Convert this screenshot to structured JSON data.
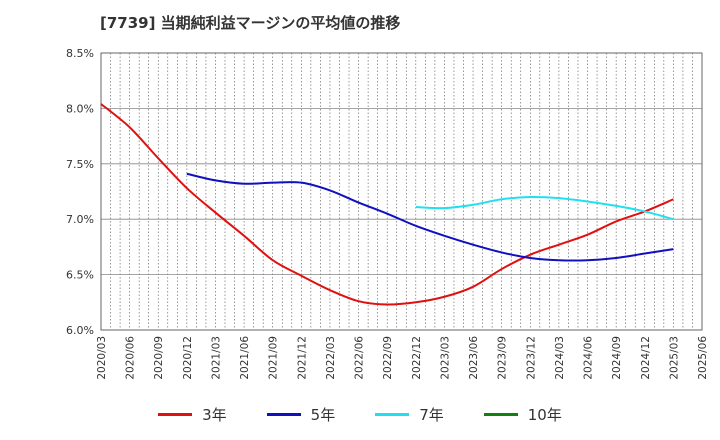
{
  "chart_data": {
    "type": "line",
    "title": "[7739]  当期純利益マージンの平均値の推移",
    "xlabel": "",
    "ylabel": "",
    "x_ticks": [
      "2020/03",
      "2020/06",
      "2020/09",
      "2020/12",
      "2021/03",
      "2021/06",
      "2021/09",
      "2021/12",
      "2022/03",
      "2022/06",
      "2022/09",
      "2022/12",
      "2023/03",
      "2023/06",
      "2023/09",
      "2023/12",
      "2024/03",
      "2024/06",
      "2024/09",
      "2024/12",
      "2025/03",
      "2025/06"
    ],
    "y_ticks": [
      "6.0%",
      "6.5%",
      "7.0%",
      "7.5%",
      "8.0%",
      "8.5%"
    ],
    "ylim": [
      6.0,
      8.5
    ],
    "grid": true,
    "legend_position": "bottom",
    "series": [
      {
        "name": "3年",
        "color": "#e01010",
        "x": [
          "2020/03",
          "2020/06",
          "2020/09",
          "2020/12",
          "2021/03",
          "2021/06",
          "2021/09",
          "2021/12",
          "2022/03",
          "2022/06",
          "2022/09",
          "2022/12",
          "2023/03",
          "2023/06",
          "2023/09",
          "2023/12",
          "2024/03",
          "2024/06",
          "2024/09",
          "2024/12",
          "2025/03"
        ],
        "values": [
          8.04,
          7.83,
          7.55,
          7.28,
          7.06,
          6.85,
          6.63,
          6.49,
          6.36,
          6.26,
          6.23,
          6.25,
          6.3,
          6.39,
          6.55,
          6.68,
          6.77,
          6.86,
          6.98,
          7.07,
          7.18
        ]
      },
      {
        "name": "5年",
        "color": "#1010c0",
        "x": [
          "2020/12",
          "2021/03",
          "2021/06",
          "2021/09",
          "2021/12",
          "2022/03",
          "2022/06",
          "2022/09",
          "2022/12",
          "2023/03",
          "2023/06",
          "2023/09",
          "2023/12",
          "2024/03",
          "2024/06",
          "2024/09",
          "2024/12",
          "2025/03"
        ],
        "values": [
          7.41,
          7.35,
          7.32,
          7.33,
          7.33,
          7.26,
          7.15,
          7.05,
          6.94,
          6.85,
          6.77,
          6.7,
          6.65,
          6.63,
          6.63,
          6.65,
          6.69,
          6.73
        ]
      },
      {
        "name": "7年",
        "color": "#20e0f0",
        "x": [
          "2022/12",
          "2023/03",
          "2023/06",
          "2023/09",
          "2023/12",
          "2024/03",
          "2024/06",
          "2024/09",
          "2024/12",
          "2025/03"
        ],
        "values": [
          7.11,
          7.1,
          7.13,
          7.18,
          7.2,
          7.19,
          7.16,
          7.12,
          7.07,
          7.0
        ]
      },
      {
        "name": "10年",
        "color": "#108010",
        "x": [],
        "values": []
      }
    ]
  }
}
